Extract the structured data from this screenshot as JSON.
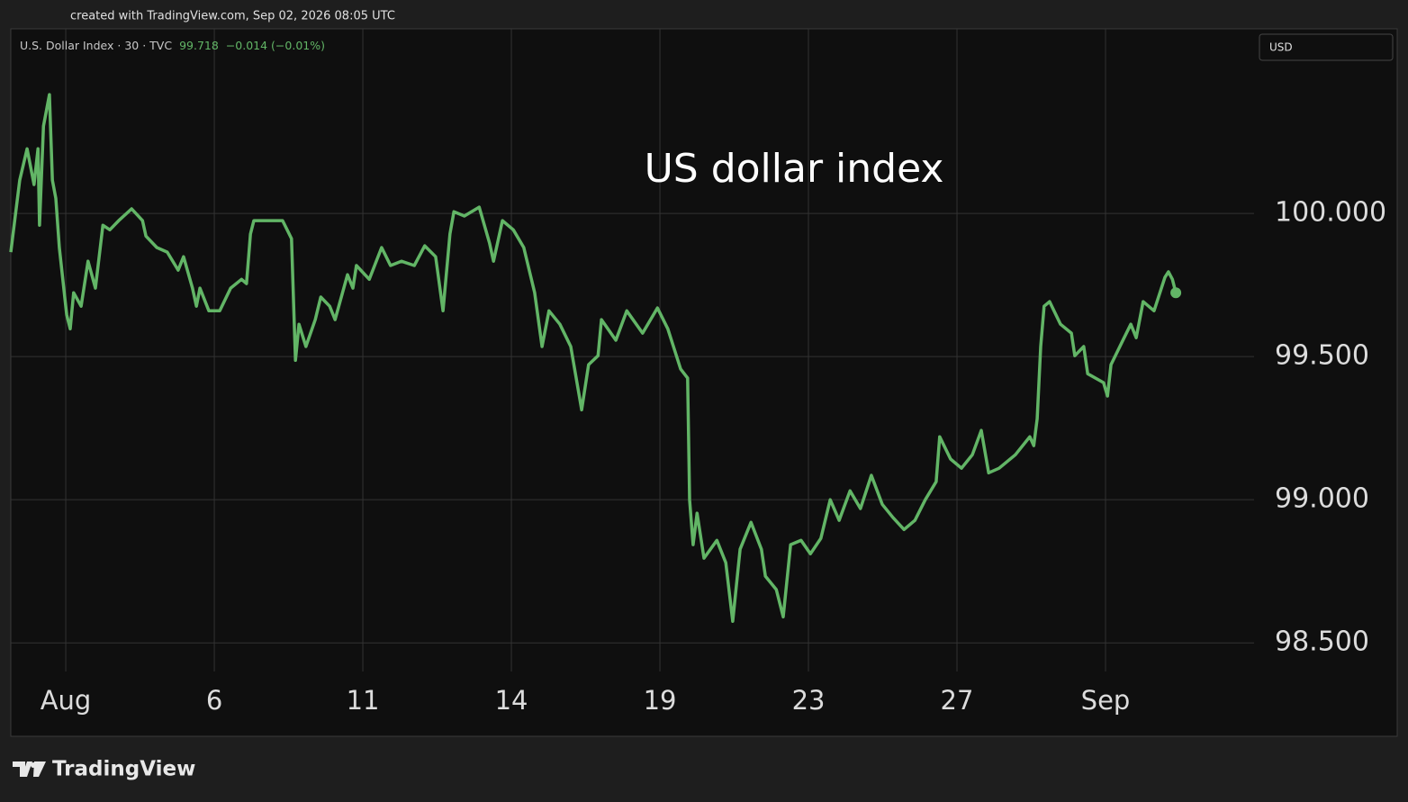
{
  "watermark": "created with TradingView.com, Sep 02, 2026 08:05 UTC",
  "brand": "TradingView",
  "chart_data": {
    "type": "line",
    "title": "US dollar index",
    "symbol": "U.S. Dollar Index · 30 · TVC",
    "last": 99.718,
    "change": "−0.014 (−0.01%)",
    "currency": "USD",
    "color": "#62b566",
    "grid": true,
    "xlim": [
      -1.11,
      24
    ],
    "ylim": [
      98.4,
      100.645
    ],
    "xticks": [
      {
        "value": 0,
        "label": "Aug"
      },
      {
        "value": 3,
        "label": "6"
      },
      {
        "value": 6,
        "label": "11"
      },
      {
        "value": 9,
        "label": "14"
      },
      {
        "value": 12,
        "label": "19"
      },
      {
        "value": 15,
        "label": "23"
      },
      {
        "value": 18,
        "label": "27"
      },
      {
        "value": 21,
        "label": "Sep"
      }
    ],
    "yticks": [
      {
        "value": 98.5,
        "label": "98.500"
      },
      {
        "value": 99,
        "label": "99.000"
      },
      {
        "value": 99.5,
        "label": "99.500"
      },
      {
        "value": 100,
        "label": "100.000"
      }
    ],
    "x": [
      -1.11,
      -0.93,
      -0.78,
      -0.64,
      -0.56,
      -0.53,
      -0.45,
      -0.33,
      -0.27,
      -0.2,
      -0.13,
      0.02,
      0.09,
      0.16,
      0.31,
      0.45,
      0.6,
      0.75,
      0.89,
      1.07,
      1.33,
      1.55,
      1.62,
      1.84,
      2.05,
      2.27,
      2.38,
      2.56,
      2.64,
      2.71,
      2.89,
      3.11,
      3.33,
      3.55,
      3.65,
      3.73,
      3.8,
      4.09,
      4.38,
      4.56,
      4.64,
      4.71,
      4.85,
      5.04,
      5.15,
      5.33,
      5.44,
      5.69,
      5.8,
      5.87,
      6.13,
      6.38,
      6.56,
      6.78,
      7.04,
      7.25,
      7.47,
      7.62,
      7.76,
      7.84,
      8.05,
      8.35,
      8.56,
      8.64,
      8.82,
      9.04,
      9.25,
      9.47,
      9.62,
      9.76,
      9.98,
      10.2,
      10.42,
      10.56,
      10.75,
      10.82,
      11.11,
      11.33,
      11.65,
      11.95,
      12.16,
      12.42,
      12.56,
      12.6,
      12.67,
      12.75,
      12.89,
      13.15,
      13.33,
      13.47,
      13.62,
      13.84,
      14.05,
      14.13,
      14.35,
      14.49,
      14.64,
      14.85,
      15.04,
      15.25,
      15.44,
      15.62,
      15.84,
      16.05,
      16.27,
      16.49,
      16.71,
      16.93,
      17.15,
      17.36,
      17.58,
      17.65,
      17.87,
      18.09,
      18.31,
      18.49,
      18.64,
      18.85,
      19.18,
      19.47,
      19.55,
      19.62,
      19.69,
      19.76,
      19.87,
      20.09,
      20.31,
      20.38,
      20.56,
      20.64,
      20.96,
      21.04,
      21.11,
      21.33,
      21.51,
      21.62,
      21.76,
      21.98,
      22.2,
      22.27,
      22.35,
      22.42
    ],
    "values": [
      99.865,
      100.116,
      100.226,
      100.101,
      100.226,
      99.959,
      100.305,
      100.415,
      100.116,
      100.053,
      99.881,
      99.645,
      99.597,
      99.723,
      99.676,
      99.833,
      99.739,
      99.959,
      99.943,
      99.975,
      100.016,
      99.975,
      99.921,
      99.881,
      99.865,
      99.802,
      99.849,
      99.739,
      99.676,
      99.739,
      99.66,
      99.66,
      99.739,
      99.77,
      99.755,
      99.928,
      99.975,
      99.975,
      99.975,
      99.912,
      99.487,
      99.613,
      99.535,
      99.629,
      99.708,
      99.676,
      99.629,
      99.786,
      99.739,
      99.818,
      99.77,
      99.881,
      99.818,
      99.833,
      99.818,
      99.887,
      99.849,
      99.66,
      99.928,
      100.006,
      99.991,
      100.022,
      99.896,
      99.833,
      99.975,
      99.943,
      99.881,
      99.723,
      99.535,
      99.66,
      99.613,
      99.535,
      99.314,
      99.472,
      99.503,
      99.629,
      99.557,
      99.66,
      99.582,
      99.67,
      99.597,
      99.456,
      99.425,
      99.0,
      98.843,
      98.953,
      98.796,
      98.858,
      98.78,
      98.575,
      98.827,
      98.921,
      98.827,
      98.733,
      98.686,
      98.591,
      98.843,
      98.858,
      98.811,
      98.865,
      99.0,
      98.928,
      99.031,
      98.969,
      99.085,
      98.984,
      98.937,
      98.896,
      98.928,
      99.0,
      99.063,
      99.22,
      99.142,
      99.11,
      99.157,
      99.242,
      99.094,
      99.11,
      99.157,
      99.22,
      99.189,
      99.283,
      99.535,
      99.676,
      99.692,
      99.613,
      99.582,
      99.503,
      99.535,
      99.44,
      99.409,
      99.362,
      99.472,
      99.55,
      99.613,
      99.566,
      99.692,
      99.66,
      99.777,
      99.796,
      99.77,
      99.723
    ]
  }
}
